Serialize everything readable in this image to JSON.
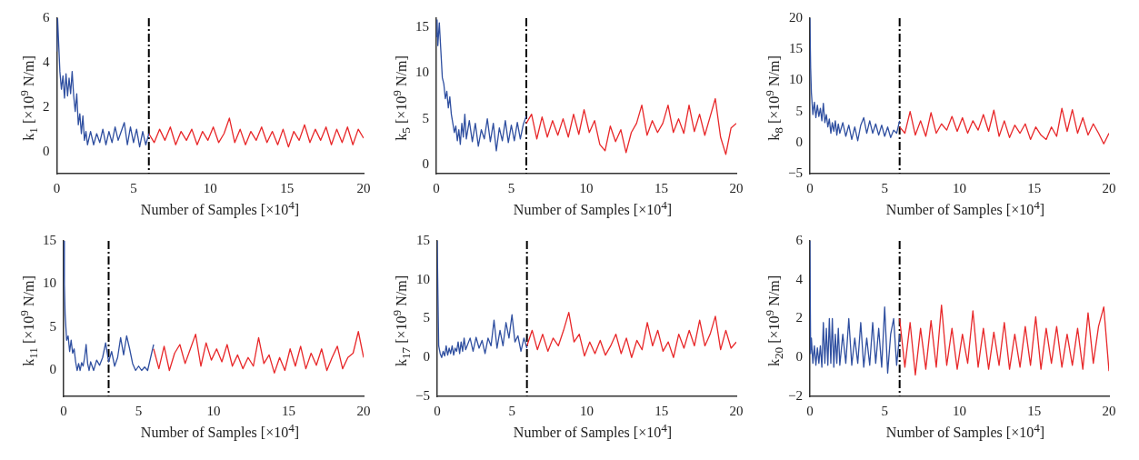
{
  "chart_data": [
    {
      "type": "line",
      "ylabel": "k$_{1}$ [×10$^{9}$ N/m]",
      "xlabel": "Number of Samples [×10$^{4}$]",
      "xlim": [
        0,
        20
      ],
      "xticks": [
        0,
        5,
        10,
        15,
        20
      ],
      "ylim": [
        -1,
        6
      ],
      "yticks": [
        0,
        2,
        4,
        6
      ],
      "x": [
        6,
        6.35,
        6.7,
        7.05,
        7.4,
        7.75,
        8.1,
        8.45,
        8.8,
        9.15,
        9.5,
        9.85,
        10.2,
        10.55,
        10.9,
        11.25,
        11.6,
        11.95,
        12.3,
        12.65,
        13,
        13.35,
        13.7,
        14.05,
        14.4,
        14.75,
        15.1,
        15.45,
        15.8,
        16.15,
        16.5,
        16.85,
        17.2,
        17.55,
        17.9,
        18.25,
        18.6,
        18.95,
        19.3,
        19.65,
        20
      ],
      "ref_lines": [
        {
          "axis": "x",
          "value": 6,
          "color": "#000000",
          "line_style": "dashed"
        }
      ],
      "series": [
        {
          "color": "#2f4fa0",
          "x": [
            0,
            0.05,
            0.1,
            0.2,
            0.3,
            0.4,
            0.5,
            0.6,
            0.7,
            0.8,
            0.9,
            1.0,
            1.1,
            1.2,
            1.3,
            1.4,
            1.5,
            1.6,
            1.7,
            1.8,
            1.9,
            2.0,
            2.2,
            2.4,
            2.6,
            2.8,
            3.0,
            3.2,
            3.4,
            3.6,
            3.8,
            4.0,
            4.2,
            4.4,
            4.6,
            4.8,
            5.0,
            5.2,
            5.4,
            5.6,
            5.8,
            6.0
          ],
          "values": [
            4.5,
            6,
            5.2,
            3.6,
            2.8,
            3.4,
            2.4,
            3.5,
            2.5,
            3.3,
            2.6,
            3.6,
            2.5,
            1.8,
            2.6,
            1.2,
            1.7,
            0.8,
            1.6,
            0.5,
            0.9,
            0.3,
            0.9,
            0.3,
            0.8,
            0.4,
            1.0,
            0.3,
            0.9,
            0.4,
            1.1,
            0.5,
            0.9,
            1.3,
            0.3,
            1.1,
            0.4,
            1.0,
            0.2,
            0.9,
            0.3,
            0.8
          ]
        },
        {
          "color": "#e8282a",
          "values": [
            0.8,
            0.4,
            1.0,
            0.5,
            1.1,
            0.3,
            0.9,
            0.5,
            1.0,
            0.3,
            0.9,
            0.5,
            1.1,
            0.4,
            0.8,
            1.5,
            0.4,
            1.0,
            0.3,
            0.9,
            0.5,
            1.1,
            0.4,
            0.9,
            0.3,
            1.0,
            0.2,
            0.9,
            0.5,
            1.2,
            0.4,
            1.0,
            0.5,
            1.1,
            0.3,
            1.0,
            0.4,
            1.1,
            0.3,
            1.0,
            0.6
          ]
        }
      ]
    },
    {
      "type": "line",
      "ylabel": "k$_{5}$ [×10$^{9}$ N/m]",
      "xlabel": "Number of Samples [×10$^{4}$]",
      "xlim": [
        0,
        20
      ],
      "xticks": [
        0,
        5,
        10,
        15,
        20
      ],
      "ylim": [
        -1,
        16
      ],
      "yticks": [
        0,
        5,
        10,
        15
      ],
      "x": [
        6,
        6.35,
        6.7,
        7.05,
        7.4,
        7.75,
        8.1,
        8.45,
        8.8,
        9.15,
        9.5,
        9.85,
        10.2,
        10.55,
        10.9,
        11.25,
        11.6,
        11.95,
        12.3,
        12.65,
        13,
        13.35,
        13.7,
        14.05,
        14.4,
        14.75,
        15.1,
        15.45,
        15.8,
        16.15,
        16.5,
        16.85,
        17.2,
        17.55,
        17.9,
        18.25,
        18.6,
        18.95,
        19.3,
        19.65,
        20
      ],
      "ref_lines": [
        {
          "axis": "x",
          "value": 6,
          "color": "#000000",
          "line_style": "dashed"
        }
      ],
      "series": [
        {
          "color": "#2f4fa0",
          "x": [
            0,
            0.05,
            0.1,
            0.2,
            0.3,
            0.4,
            0.5,
            0.6,
            0.7,
            0.8,
            0.9,
            1.0,
            1.1,
            1.2,
            1.3,
            1.4,
            1.5,
            1.6,
            1.7,
            1.8,
            1.9,
            2.0,
            2.2,
            2.4,
            2.6,
            2.8,
            3.0,
            3.2,
            3.4,
            3.6,
            3.8,
            4.0,
            4.2,
            4.4,
            4.6,
            4.8,
            5.0,
            5.2,
            5.4,
            5.6,
            5.8,
            6.0
          ],
          "values": [
            14,
            15.8,
            13,
            15.5,
            12.5,
            9.5,
            8.8,
            7.2,
            8,
            6.2,
            7.4,
            5.5,
            4.5,
            3.5,
            4.2,
            2.6,
            3.8,
            2.2,
            4.5,
            3,
            5.5,
            2.8,
            4.8,
            2.5,
            4.5,
            2,
            3.8,
            2.8,
            5,
            2.5,
            4.5,
            1.5,
            4,
            2.6,
            4.8,
            2.4,
            4.3,
            2.6,
            4.6,
            2.8,
            4.4,
            5.3
          ]
        },
        {
          "color": "#e8282a",
          "values": [
            4.5,
            5.5,
            2.8,
            5.2,
            3,
            4.8,
            3.2,
            5,
            3,
            5.5,
            3.3,
            6,
            3.5,
            4.8,
            2.2,
            1.5,
            4.2,
            2.5,
            3.8,
            1.3,
            3.5,
            4.5,
            6.5,
            3.2,
            4.8,
            3.5,
            4.5,
            6.5,
            3.5,
            5,
            3.4,
            6.5,
            3.6,
            5.5,
            3.2,
            5.2,
            7.2,
            3,
            1.1,
            4,
            4.5
          ]
        }
      ]
    },
    {
      "type": "line",
      "ylabel": "k$_{8}$ [×10$^{9}$ N/m]",
      "xlabel": "Number of Samples [×10$^{4}$]",
      "xlim": [
        0,
        20
      ],
      "xticks": [
        0,
        5,
        10,
        15,
        20
      ],
      "ylim": [
        -5,
        20
      ],
      "yticks": [
        -5,
        0,
        5,
        10,
        15,
        20
      ],
      "x": [
        6,
        6.35,
        6.7,
        7.05,
        7.4,
        7.75,
        8.1,
        8.45,
        8.8,
        9.15,
        9.5,
        9.85,
        10.2,
        10.55,
        10.9,
        11.25,
        11.6,
        11.95,
        12.3,
        12.65,
        13,
        13.35,
        13.7,
        14.05,
        14.4,
        14.75,
        15.1,
        15.45,
        15.8,
        16.15,
        16.5,
        16.85,
        17.2,
        17.55,
        17.9,
        18.25,
        18.6,
        18.95,
        19.3,
        19.65,
        20
      ],
      "ref_lines": [
        {
          "axis": "x",
          "value": 6,
          "color": "#000000",
          "line_style": "dashed"
        }
      ],
      "series": [
        {
          "color": "#2f4fa0",
          "x": [
            0,
            0.05,
            0.1,
            0.2,
            0.3,
            0.4,
            0.5,
            0.6,
            0.7,
            0.8,
            0.9,
            1.0,
            1.1,
            1.2,
            1.3,
            1.4,
            1.5,
            1.6,
            1.7,
            1.8,
            1.9,
            2.0,
            2.2,
            2.4,
            2.6,
            2.8,
            3.0,
            3.2,
            3.4,
            3.6,
            3.8,
            4.0,
            4.2,
            4.4,
            4.6,
            4.8,
            5.0,
            5.2,
            5.4,
            5.6,
            5.8,
            6.0
          ],
          "values": [
            20,
            12,
            8,
            4.5,
            6.5,
            4,
            6,
            4.2,
            5.5,
            3.5,
            6.3,
            3.2,
            4.5,
            2.5,
            3.8,
            1.5,
            3.2,
            1.8,
            3.5,
            1.2,
            3,
            1.5,
            3.2,
            1,
            2.8,
            0.5,
            2.5,
            0.3,
            2.8,
            4,
            1.5,
            3.5,
            1.5,
            3,
            1.2,
            2.8,
            1,
            2.5,
            0.8,
            2,
            1.5,
            3.5
          ]
        },
        {
          "color": "#e8282a",
          "values": [
            2.5,
            1.5,
            5,
            1.2,
            3.5,
            1,
            4.8,
            1.5,
            3,
            2,
            4.2,
            1.8,
            4,
            1.5,
            3.5,
            2,
            4.5,
            1.8,
            5.2,
            1,
            3.5,
            0.8,
            2.8,
            1.5,
            3,
            0.5,
            2.5,
            1.2,
            0.5,
            2.5,
            1,
            5.5,
            1.8,
            5.3,
            1.5,
            4,
            1.2,
            3,
            1.5,
            -0.2,
            1.5
          ]
        }
      ]
    },
    {
      "type": "line",
      "ylabel": "k$_{11}$ [×10$^{9}$ N/m]",
      "xlabel": "Number of Samples [×10$^{4}$]",
      "xlim": [
        0,
        20
      ],
      "xticks": [
        0,
        5,
        10,
        15,
        20
      ],
      "ylim": [
        -3,
        15
      ],
      "yticks": [
        0,
        5,
        10,
        15
      ],
      "x": [
        6,
        6.35,
        6.7,
        7.05,
        7.4,
        7.75,
        8.1,
        8.45,
        8.8,
        9.15,
        9.5,
        9.85,
        10.2,
        10.55,
        10.9,
        11.25,
        11.6,
        11.95,
        12.3,
        12.65,
        13,
        13.35,
        13.7,
        14.05,
        14.4,
        14.75,
        15.1,
        15.45,
        15.8,
        16.15,
        16.5,
        16.85,
        17.2,
        17.55,
        17.9,
        18.25,
        18.6,
        18.95,
        19.3,
        19.65,
        20
      ],
      "ref_lines": [
        {
          "axis": "x",
          "value": 3,
          "color": "#000000",
          "line_style": "dashed"
        }
      ],
      "series": [
        {
          "color": "#2f4fa0",
          "x": [
            0,
            0.05,
            0.1,
            0.2,
            0.3,
            0.4,
            0.5,
            0.6,
            0.7,
            0.8,
            0.9,
            1.0,
            1.1,
            1.2,
            1.3,
            1.4,
            1.5,
            1.6,
            1.7,
            1.8,
            1.9,
            2.0,
            2.2,
            2.4,
            2.6,
            2.8,
            3.0,
            3.2,
            3.4,
            3.6,
            3.8,
            4.0,
            4.2,
            4.4,
            4.6,
            4.8,
            5.0,
            5.2,
            5.4,
            5.6,
            5.8,
            6.0
          ],
          "values": [
            15,
            10,
            6.5,
            3.5,
            4,
            2.2,
            3.5,
            2,
            2.5,
            1,
            0,
            0.8,
            0,
            0.9,
            0.5,
            1.5,
            3,
            0.8,
            0,
            1,
            0.5,
            0,
            1.2,
            0.6,
            1.5,
            3.2,
            1,
            2.2,
            0.5,
            1.5,
            3.8,
            1.8,
            4,
            2.5,
            0.8,
            0,
            0.5,
            0,
            0.4,
            0,
            1.5,
            3
          ]
        },
        {
          "color": "#e8282a",
          "values": [
            2.5,
            0.2,
            2.8,
            0,
            2,
            3,
            0.8,
            2.5,
            4.2,
            0.5,
            3.2,
            1.2,
            2.5,
            1,
            3,
            0.5,
            1.8,
            0.2,
            1.5,
            0.5,
            3.8,
            0.8,
            1.8,
            -0.3,
            1.5,
            0,
            2.5,
            0.5,
            2.8,
            0.2,
            2,
            0.6,
            2.5,
            0,
            1.5,
            2.8,
            0.2,
            1.5,
            2,
            4.5,
            1.5
          ]
        }
      ]
    },
    {
      "type": "line",
      "ylabel": "k$_{17}$ [×10$^{9}$ N/m]",
      "xlabel": "Number of Samples [×10$^{4}$]",
      "xlim": [
        0,
        20
      ],
      "xticks": [
        0,
        5,
        10,
        15,
        20
      ],
      "ylim": [
        -5,
        15
      ],
      "yticks": [
        -5,
        0,
        5,
        10,
        15
      ],
      "x": [
        6,
        6.35,
        6.7,
        7.05,
        7.4,
        7.75,
        8.1,
        8.45,
        8.8,
        9.15,
        9.5,
        9.85,
        10.2,
        10.55,
        10.9,
        11.25,
        11.6,
        11.95,
        12.3,
        12.65,
        13,
        13.35,
        13.7,
        14.05,
        14.4,
        14.75,
        15.1,
        15.45,
        15.8,
        16.15,
        16.5,
        16.85,
        17.2,
        17.55,
        17.9,
        18.25,
        18.6,
        18.95,
        19.3,
        19.65,
        20
      ],
      "ref_lines": [
        {
          "axis": "x",
          "value": 6,
          "color": "#000000",
          "line_style": "dashed"
        }
      ],
      "series": [
        {
          "color": "#2f4fa0",
          "x": [
            0,
            0.05,
            0.1,
            0.2,
            0.3,
            0.4,
            0.5,
            0.6,
            0.7,
            0.8,
            0.9,
            1.0,
            1.1,
            1.2,
            1.3,
            1.4,
            1.5,
            1.6,
            1.7,
            1.8,
            1.9,
            2.0,
            2.2,
            2.4,
            2.6,
            2.8,
            3.0,
            3.2,
            3.4,
            3.6,
            3.8,
            4.0,
            4.2,
            4.4,
            4.6,
            4.8,
            5.0,
            5.2,
            5.4,
            5.6,
            5.8,
            6.0
          ],
          "values": [
            15,
            8,
            1.5,
            0.5,
            0,
            0.8,
            0.2,
            1.5,
            0.3,
            1.2,
            0.5,
            1.5,
            0.3,
            1.2,
            0.8,
            2,
            0.5,
            2,
            0.8,
            2.5,
            1,
            1.5,
            2.5,
            0.8,
            2.6,
            1.2,
            2.2,
            0.5,
            2.5,
            1.5,
            4.8,
            1.2,
            3.5,
            1.5,
            4.5,
            2.5,
            5.5,
            2,
            2.8,
            0.8,
            2.5,
            1.2
          ]
        },
        {
          "color": "#e8282a",
          "values": [
            1.5,
            3.5,
            1,
            3,
            0.8,
            2.5,
            1.5,
            3.5,
            5.8,
            2,
            3,
            0.2,
            2,
            0.5,
            2.2,
            0.3,
            1.5,
            3,
            0.5,
            2.5,
            0,
            2.2,
            1,
            4.5,
            1.5,
            3.5,
            0.8,
            2,
            0,
            3,
            1.2,
            3.5,
            1.5,
            4.8,
            1.5,
            3,
            5.3,
            1,
            3.5,
            1.2,
            2
          ]
        }
      ]
    },
    {
      "type": "line",
      "ylabel": "k$_{20}$ [×10$^{9}$ N/m]",
      "xlabel": "Number of Samples [×10$^{4}$]",
      "xlim": [
        0,
        20
      ],
      "xticks": [
        0,
        5,
        10,
        15,
        20
      ],
      "ylim": [
        -2,
        6
      ],
      "yticks": [
        -2,
        0,
        2,
        4,
        6
      ],
      "x": [
        6,
        6.35,
        6.7,
        7.05,
        7.4,
        7.75,
        8.1,
        8.45,
        8.8,
        9.15,
        9.5,
        9.85,
        10.2,
        10.55,
        10.9,
        11.25,
        11.6,
        11.95,
        12.3,
        12.65,
        13,
        13.35,
        13.7,
        14.05,
        14.4,
        14.75,
        15.1,
        15.45,
        15.8,
        16.15,
        16.5,
        16.85,
        17.2,
        17.55,
        17.9,
        18.25,
        18.6,
        18.95,
        19.3,
        19.65,
        20
      ],
      "ref_lines": [
        {
          "axis": "x",
          "value": 6,
          "color": "#000000",
          "line_style": "dashed"
        }
      ],
      "series": [
        {
          "color": "#2f4fa0",
          "x": [
            0,
            0.05,
            0.1,
            0.2,
            0.3,
            0.4,
            0.5,
            0.6,
            0.7,
            0.8,
            0.9,
            1.0,
            1.1,
            1.2,
            1.3,
            1.4,
            1.5,
            1.6,
            1.7,
            1.8,
            1.9,
            2.0,
            2.2,
            2.4,
            2.6,
            2.8,
            3.0,
            3.2,
            3.4,
            3.6,
            3.8,
            4.0,
            4.2,
            4.4,
            4.6,
            4.8,
            5.0,
            5.2,
            5.4,
            5.6,
            5.8,
            6.0
          ],
          "values": [
            6,
            0.2,
            1,
            -0.3,
            0.6,
            -0.4,
            0.5,
            -0.3,
            0.6,
            -0.5,
            1.8,
            -0.3,
            1.5,
            -0.4,
            2,
            -0.3,
            2,
            -0.5,
            1.2,
            -0.3,
            1.5,
            -0.4,
            1.2,
            -0.3,
            2,
            -0.4,
            1,
            -0.3,
            1.8,
            -0.5,
            1,
            -0.4,
            1.8,
            -0.3,
            1.5,
            -0.5,
            2.6,
            -0.8,
            1.2,
            2,
            -0.4,
            1.2
          ]
        },
        {
          "color": "#e8282a",
          "values": [
            2,
            -0.5,
            1.8,
            -0.9,
            1.5,
            -0.6,
            1.9,
            -0.5,
            2.7,
            -0.4,
            1.5,
            -0.6,
            1.2,
            -0.3,
            2.4,
            -0.5,
            1.5,
            -0.6,
            1.3,
            -0.4,
            1.8,
            -0.6,
            1.2,
            -0.5,
            1.6,
            -0.4,
            2.1,
            -0.6,
            1.5,
            -0.3,
            1.6,
            -0.5,
            1.2,
            -0.4,
            1.5,
            -0.6,
            2.3,
            -0.3,
            1.6,
            2.6,
            -0.7
          ]
        }
      ]
    }
  ]
}
